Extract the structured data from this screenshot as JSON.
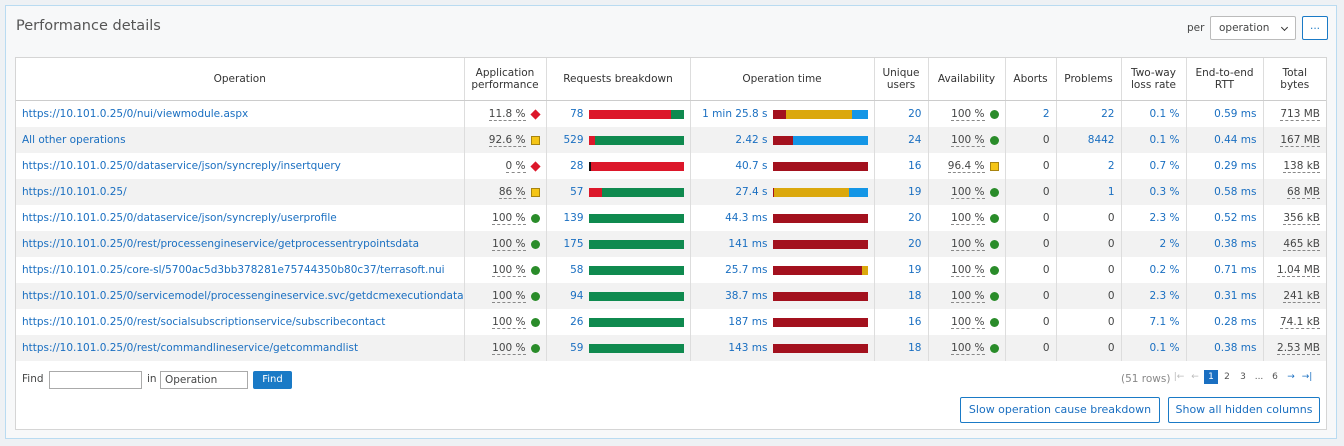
{
  "header": {
    "title": "Performance details",
    "per_label": "per",
    "per_select": "operation",
    "more": "..."
  },
  "table": {
    "columns": [
      "Operation",
      "Application performance",
      "Requests breakdown",
      "Operation time",
      "Unique users",
      "Availability",
      "Aborts",
      "Problems",
      "Two-way loss rate",
      "End-to-end RTT",
      "Total bytes"
    ],
    "rows": [
      {
        "op": "https://10.101.0.25/0/nui/viewmodule.aspx",
        "app": "11.8 %",
        "app_status": "critical",
        "req": "78",
        "req_bar": [
          {
            "v": 87,
            "c": "#dc172a"
          },
          {
            "v": 13,
            "c": "#0f8a4f"
          }
        ],
        "time": "1 min 25.8 s",
        "time_bar": [
          {
            "v": 14,
            "c": "#a3111e"
          },
          {
            "v": 70,
            "c": "#dba80d"
          },
          {
            "v": 16,
            "c": "#1496e6"
          }
        ],
        "users": "20",
        "avail": "100 %",
        "avail_status": "ok",
        "aborts": "2",
        "problems": "22",
        "loss": "0.1 %",
        "rtt": "0.59 ms",
        "bytes": "713 MB"
      },
      {
        "op": "All other operations",
        "app": "92.6 %",
        "app_status": "warning",
        "req": "529",
        "req_bar": [
          {
            "v": 7,
            "c": "#dc172a"
          },
          {
            "v": 93,
            "c": "#0f8a4f"
          }
        ],
        "time": "2.42 s",
        "time_bar": [
          {
            "v": 22,
            "c": "#a3111e"
          },
          {
            "v": 78,
            "c": "#1496e6"
          }
        ],
        "users": "24",
        "avail": "100 %",
        "avail_status": "ok",
        "aborts": "0",
        "problems": "8442",
        "loss": "0.1 %",
        "rtt": "0.44 ms",
        "bytes": "167 MB"
      },
      {
        "op": "https://10.101.0.25/0/dataservice/json/syncreply/insertquery",
        "app": "0 %",
        "app_status": "critical",
        "req": "28",
        "req_bar": [
          {
            "v": 3,
            "c": "#111111"
          },
          {
            "v": 97,
            "c": "#dc172a"
          }
        ],
        "time": "40.7 s",
        "time_bar": [
          {
            "v": 100,
            "c": "#a3111e"
          }
        ],
        "users": "16",
        "avail": "96.4 %",
        "avail_status": "warning",
        "aborts": "0",
        "problems": "2",
        "loss": "0.7 %",
        "rtt": "0.29 ms",
        "bytes": "138 kB"
      },
      {
        "op": "https://10.101.0.25/",
        "app": "86 %",
        "app_status": "warning",
        "req": "57",
        "req_bar": [
          {
            "v": 14,
            "c": "#dc172a"
          },
          {
            "v": 86,
            "c": "#0f8a4f"
          }
        ],
        "time": "27.4 s",
        "time_bar": [
          {
            "v": 2,
            "c": "#a3111e"
          },
          {
            "v": 78,
            "c": "#dba80d"
          },
          {
            "v": 20,
            "c": "#1496e6"
          }
        ],
        "users": "19",
        "avail": "100 %",
        "avail_status": "ok",
        "aborts": "0",
        "problems": "1",
        "loss": "0.3 %",
        "rtt": "0.58 ms",
        "bytes": "68 MB"
      },
      {
        "op": "https://10.101.0.25/0/dataservice/json/syncreply/userprofile",
        "app": "100 %",
        "app_status": "ok",
        "req": "139",
        "req_bar": [
          {
            "v": 100,
            "c": "#0f8a4f"
          }
        ],
        "time": "44.3 ms",
        "time_bar": [
          {
            "v": 100,
            "c": "#a3111e"
          }
        ],
        "users": "20",
        "avail": "100 %",
        "avail_status": "ok",
        "aborts": "0",
        "problems": "0",
        "loss": "2.3 %",
        "rtt": "0.52 ms",
        "bytes": "356 kB"
      },
      {
        "op": "https://10.101.0.25/0/rest/processengineservice/getprocessentrypointsdata",
        "app": "100 %",
        "app_status": "ok",
        "req": "175",
        "req_bar": [
          {
            "v": 100,
            "c": "#0f8a4f"
          }
        ],
        "time": "141 ms",
        "time_bar": [
          {
            "v": 100,
            "c": "#a3111e"
          }
        ],
        "users": "20",
        "avail": "100 %",
        "avail_status": "ok",
        "aborts": "0",
        "problems": "0",
        "loss": "2 %",
        "rtt": "0.38 ms",
        "bytes": "465 kB"
      },
      {
        "op": "https://10.101.0.25/core-sl/5700ac5d3bb378281e75744350b80c37/terrasoft.nui",
        "app": "100 %",
        "app_status": "ok",
        "req": "58",
        "req_bar": [
          {
            "v": 100,
            "c": "#0f8a4f"
          }
        ],
        "time": "25.7 ms",
        "time_bar": [
          {
            "v": 94,
            "c": "#a3111e"
          },
          {
            "v": 6,
            "c": "#dba80d"
          }
        ],
        "users": "19",
        "avail": "100 %",
        "avail_status": "ok",
        "aborts": "0",
        "problems": "0",
        "loss": "0.2 %",
        "rtt": "0.71 ms",
        "bytes": "1.04 MB"
      },
      {
        "op": "https://10.101.0.25/0/servicemodel/processengineservice.svc/getdcmexecutiondata",
        "app": "100 %",
        "app_status": "ok",
        "req": "94",
        "req_bar": [
          {
            "v": 100,
            "c": "#0f8a4f"
          }
        ],
        "time": "38.7 ms",
        "time_bar": [
          {
            "v": 100,
            "c": "#a3111e"
          }
        ],
        "users": "18",
        "avail": "100 %",
        "avail_status": "ok",
        "aborts": "0",
        "problems": "0",
        "loss": "2.3 %",
        "rtt": "0.31 ms",
        "bytes": "241 kB"
      },
      {
        "op": "https://10.101.0.25/0/rest/socialsubscriptionservice/subscribecontact",
        "app": "100 %",
        "app_status": "ok",
        "req": "26",
        "req_bar": [
          {
            "v": 100,
            "c": "#0f8a4f"
          }
        ],
        "time": "187 ms",
        "time_bar": [
          {
            "v": 100,
            "c": "#a3111e"
          }
        ],
        "users": "16",
        "avail": "100 %",
        "avail_status": "ok",
        "aborts": "0",
        "problems": "0",
        "loss": "7.1 %",
        "rtt": "0.28 ms",
        "bytes": "74.1 kB"
      },
      {
        "op": "https://10.101.0.25/0/rest/commandlineservice/getcommandlist",
        "app": "100 %",
        "app_status": "ok",
        "req": "59",
        "req_bar": [
          {
            "v": 100,
            "c": "#0f8a4f"
          }
        ],
        "time": "143 ms",
        "time_bar": [
          {
            "v": 100,
            "c": "#a3111e"
          }
        ],
        "users": "18",
        "avail": "100 %",
        "avail_status": "ok",
        "aborts": "0",
        "problems": "0",
        "loss": "0.1 %",
        "rtt": "0.38 ms",
        "bytes": "2.53 MB"
      }
    ]
  },
  "footer": {
    "find_label": "Find",
    "in_label": "in",
    "in_select": "Operation",
    "find_button": "Find",
    "rows_count": "(51 rows)",
    "pages": [
      "1",
      "2",
      "3",
      "...",
      "6"
    ],
    "buttons": [
      "Slow operation cause breakdown",
      "Show all hidden columns"
    ]
  }
}
